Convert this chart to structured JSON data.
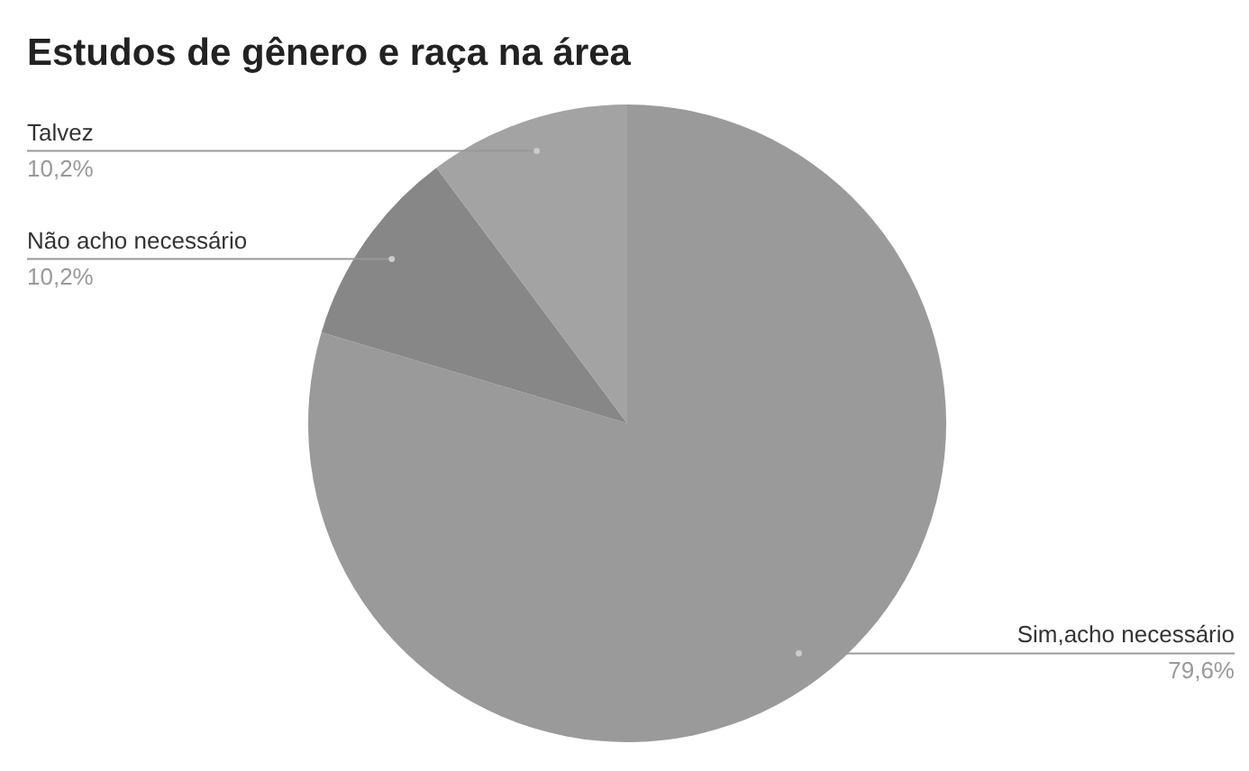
{
  "chart_data": {
    "type": "pie",
    "title": "Estudos de gênero e raça na área",
    "categories": [
      "Sim,acho necessário",
      "Não acho necessário",
      "Talvez"
    ],
    "values": [
      79.6,
      10.2,
      10.2
    ],
    "value_labels": [
      "79,6%",
      "10,2%",
      "10,2%"
    ],
    "colors": [
      "#9a9a9a",
      "#878787",
      "#a3a3a3"
    ],
    "legend": false
  }
}
